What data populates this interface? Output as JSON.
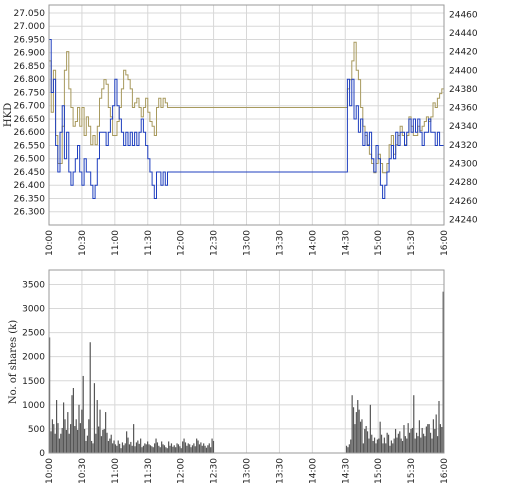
{
  "chart_data": [
    {
      "type": "line",
      "ylabel": "HKD",
      "x_ticks": [
        "10:00",
        "10:30",
        "11:00",
        "11:30",
        "12:00",
        "12:30",
        "13:00",
        "13:30",
        "14:00",
        "14:30",
        "15:00",
        "15:30",
        "16:00"
      ],
      "y_left_ticks": [
        "26.300",
        "26.350",
        "26.400",
        "26.450",
        "26.500",
        "26.550",
        "26.600",
        "26.650",
        "26.700",
        "26.750",
        "26.800",
        "26.850",
        "26.900",
        "26.950",
        "27.000",
        "27.050"
      ],
      "y_right_ticks": [
        "24240",
        "24260",
        "24280",
        "24300",
        "24320",
        "24340",
        "24360",
        "24380",
        "24400",
        "24420",
        "24440",
        "24460"
      ],
      "ylim_left": [
        26.25,
        27.08
      ],
      "ylim_right": [
        24234,
        24470
      ],
      "grid": true,
      "series": [
        {
          "axis": "left",
          "color": "#1f3fbf",
          "x": [
            "10:00",
            "10:02",
            "10:04",
            "10:06",
            "10:08",
            "10:10",
            "10:12",
            "10:14",
            "10:16",
            "10:18",
            "10:20",
            "10:22",
            "10:24",
            "10:26",
            "10:28",
            "10:30",
            "10:32",
            "10:34",
            "10:36",
            "10:38",
            "10:40",
            "10:42",
            "10:44",
            "10:46",
            "10:48",
            "10:50",
            "10:52",
            "10:54",
            "10:56",
            "10:58",
            "11:00",
            "11:02",
            "11:04",
            "11:06",
            "11:08",
            "11:10",
            "11:12",
            "11:14",
            "11:16",
            "11:18",
            "11:20",
            "11:22",
            "11:24",
            "11:26",
            "11:28",
            "11:30",
            "11:32",
            "11:34",
            "11:36",
            "11:38",
            "11:40",
            "11:42",
            "11:44",
            "11:46",
            "11:48",
            "11:50",
            "11:52",
            "11:54",
            "11:56",
            "11:58",
            "12:00",
            "12:02",
            "12:04",
            "12:06",
            "12:08",
            "12:10",
            "12:12",
            "12:14",
            "12:16",
            "12:18",
            "12:20",
            "12:22",
            "12:24",
            "12:26",
            "12:28",
            "12:30",
            "14:30",
            "14:32",
            "14:34",
            "14:36",
            "14:38",
            "14:40",
            "14:42",
            "14:44",
            "14:46",
            "14:48",
            "14:50",
            "14:52",
            "14:54",
            "14:56",
            "14:58",
            "15:00",
            "15:02",
            "15:04",
            "15:06",
            "15:08",
            "15:10",
            "15:12",
            "15:14",
            "15:16",
            "15:18",
            "15:20",
            "15:22",
            "15:24",
            "15:26",
            "15:28",
            "15:30",
            "15:32",
            "15:34",
            "15:36",
            "15:38",
            "15:40",
            "15:42",
            "15:44",
            "15:46",
            "15:48",
            "15:50",
            "15:52",
            "15:54",
            "15:56",
            "15:58",
            "16:00"
          ],
          "values": [
            26.95,
            26.75,
            26.8,
            26.55,
            26.45,
            26.6,
            26.7,
            26.5,
            26.6,
            26.45,
            26.4,
            26.45,
            26.5,
            26.55,
            26.45,
            26.4,
            26.5,
            26.45,
            26.45,
            26.4,
            26.35,
            26.4,
            26.5,
            26.6,
            26.6,
            26.6,
            26.55,
            26.6,
            26.65,
            26.7,
            26.8,
            26.7,
            26.65,
            26.6,
            26.55,
            26.6,
            26.55,
            26.6,
            26.55,
            26.6,
            26.55,
            26.6,
            26.65,
            26.6,
            26.55,
            26.5,
            26.45,
            26.4,
            26.35,
            26.45,
            26.45,
            26.4,
            26.45,
            26.4,
            26.45,
            26.45,
            26.45,
            26.45,
            26.45,
            26.45,
            26.45,
            26.45,
            26.45,
            26.45,
            26.45,
            26.45,
            26.45,
            26.45,
            26.45,
            26.45,
            26.45,
            26.45,
            26.45,
            26.45,
            26.45,
            26.45,
            26.45,
            26.8,
            26.7,
            26.8,
            26.65,
            26.7,
            26.6,
            26.65,
            26.55,
            26.6,
            26.55,
            26.6,
            26.5,
            26.45,
            26.55,
            26.5,
            26.4,
            26.35,
            26.4,
            26.45,
            26.5,
            26.55,
            26.5,
            26.6,
            26.55,
            26.6,
            26.6,
            26.55,
            26.6,
            26.65,
            26.6,
            26.65,
            26.6,
            26.65,
            26.6,
            26.55,
            26.6,
            26.6,
            26.65,
            26.6,
            26.6,
            26.55,
            26.6,
            26.55,
            26.55,
            26.55
          ]
        },
        {
          "axis": "right",
          "color": "#a89a5e",
          "x": [
            "10:00",
            "10:02",
            "10:04",
            "10:06",
            "10:08",
            "10:10",
            "10:12",
            "10:14",
            "10:16",
            "10:18",
            "10:20",
            "10:22",
            "10:24",
            "10:26",
            "10:28",
            "10:30",
            "10:32",
            "10:34",
            "10:36",
            "10:38",
            "10:40",
            "10:42",
            "10:44",
            "10:46",
            "10:48",
            "10:50",
            "10:52",
            "10:54",
            "10:56",
            "10:58",
            "11:00",
            "11:02",
            "11:04",
            "11:06",
            "11:08",
            "11:10",
            "11:12",
            "11:14",
            "11:16",
            "11:18",
            "11:20",
            "11:22",
            "11:24",
            "11:26",
            "11:28",
            "11:30",
            "11:32",
            "11:34",
            "11:36",
            "11:38",
            "11:40",
            "11:42",
            "11:44",
            "11:46",
            "11:48",
            "11:50",
            "11:52",
            "11:54",
            "11:56",
            "11:58",
            "12:00",
            "12:02",
            "12:04",
            "12:06",
            "12:08",
            "12:10",
            "12:12",
            "12:14",
            "12:16",
            "12:18",
            "12:20",
            "12:22",
            "12:24",
            "12:26",
            "12:28",
            "12:30",
            "14:30",
            "14:32",
            "14:34",
            "14:36",
            "14:38",
            "14:40",
            "14:42",
            "14:44",
            "14:46",
            "14:48",
            "14:50",
            "14:52",
            "14:54",
            "14:56",
            "14:58",
            "15:00",
            "15:02",
            "15:04",
            "15:06",
            "15:08",
            "15:10",
            "15:12",
            "15:14",
            "15:16",
            "15:18",
            "15:20",
            "15:22",
            "15:24",
            "15:26",
            "15:28",
            "15:30",
            "15:32",
            "15:34",
            "15:36",
            "15:38",
            "15:40",
            "15:42",
            "15:44",
            "15:46",
            "15:48",
            "15:50",
            "15:52",
            "15:54",
            "15:56",
            "15:58",
            "16:00"
          ],
          "values": [
            24410,
            24355,
            24400,
            24330,
            24300,
            24300,
            24340,
            24400,
            24420,
            24380,
            24360,
            24340,
            24345,
            24360,
            24340,
            24360,
            24330,
            24350,
            24340,
            24320,
            24330,
            24320,
            24340,
            24370,
            24380,
            24390,
            24385,
            24360,
            24350,
            24330,
            24330,
            24345,
            24360,
            24380,
            24400,
            24395,
            24390,
            24380,
            24360,
            24365,
            24370,
            24360,
            24350,
            24360,
            24370,
            24355,
            24345,
            24340,
            24330,
            24360,
            24370,
            24360,
            24370,
            24365,
            24360,
            24360,
            24360,
            24360,
            24360,
            24360,
            24360,
            24360,
            24360,
            24360,
            24360,
            24360,
            24360,
            24360,
            24360,
            24360,
            24360,
            24360,
            24360,
            24360,
            24360,
            24360,
            24360,
            24380,
            24390,
            24410,
            24430,
            24400,
            24390,
            24360,
            24340,
            24330,
            24320,
            24310,
            24300,
            24290,
            24300,
            24310,
            24300,
            24290,
            24290,
            24300,
            24320,
            24330,
            24310,
            24320,
            24330,
            24340,
            24330,
            24320,
            24330,
            24350,
            24340,
            24330,
            24330,
            24340,
            24335,
            24340,
            24345,
            24350,
            24345,
            24350,
            24365,
            24360,
            24370,
            24375,
            24380,
            24385
          ]
        }
      ]
    },
    {
      "type": "bar",
      "ylabel": "No. of shares (k)",
      "x_ticks": [
        "10:00",
        "10:30",
        "11:00",
        "11:30",
        "12:00",
        "12:30",
        "13:00",
        "13:30",
        "14:00",
        "14:30",
        "15:00",
        "15:30",
        "16:00"
      ],
      "y_ticks": [
        "0",
        "500",
        "1000",
        "1500",
        "2000",
        "2500",
        "3000",
        "3500"
      ],
      "ylim": [
        0,
        3800
      ],
      "grid": true,
      "color": "#555555",
      "sessions": [
        [
          "10:00",
          "12:30"
        ],
        [
          "14:30",
          "16:00"
        ]
      ],
      "values": [
        2400,
        450,
        700,
        600,
        400,
        1100,
        620,
        300,
        400,
        520,
        1050,
        700,
        480,
        850,
        400,
        600,
        1200,
        1350,
        560,
        700,
        480,
        1000,
        620,
        900,
        1600,
        500,
        250,
        360,
        700,
        2300,
        250,
        200,
        1450,
        400,
        1100,
        550,
        900,
        350,
        480,
        500,
        850,
        420,
        250,
        300,
        380,
        200,
        260,
        180,
        150,
        260,
        190,
        100,
        220,
        160,
        200,
        450,
        320,
        180,
        230,
        150,
        600,
        140,
        220,
        260,
        190,
        300,
        120,
        150,
        200,
        180,
        240,
        180,
        160,
        140,
        120,
        200,
        300,
        220,
        150,
        120,
        240,
        180,
        160,
        120,
        100,
        240,
        150,
        200,
        130,
        160,
        120,
        200,
        180,
        140,
        100,
        240,
        300,
        220,
        150,
        200,
        180,
        120,
        160,
        200,
        140,
        300,
        260,
        180,
        220,
        150,
        200,
        150,
        110,
        160,
        200,
        120,
        300,
        250,
        150,
        120,
        180,
        280,
        1200,
        950,
        600,
        850,
        1100,
        900,
        650,
        700,
        200,
        500,
        560,
        450,
        300,
        1000,
        380,
        250,
        320,
        200,
        280,
        300,
        650,
        380,
        200,
        320,
        200,
        420,
        380,
        150,
        260,
        200,
        300,
        500,
        320,
        400,
        450,
        300,
        250,
        580,
        350,
        300,
        620,
        420,
        500,
        520,
        1200,
        300,
        420,
        350,
        680,
        320,
        520,
        400,
        350,
        550,
        600,
        600,
        420,
        300,
        700,
        500,
        800,
        350,
        1080,
        600,
        540,
        3350
      ]
    }
  ]
}
